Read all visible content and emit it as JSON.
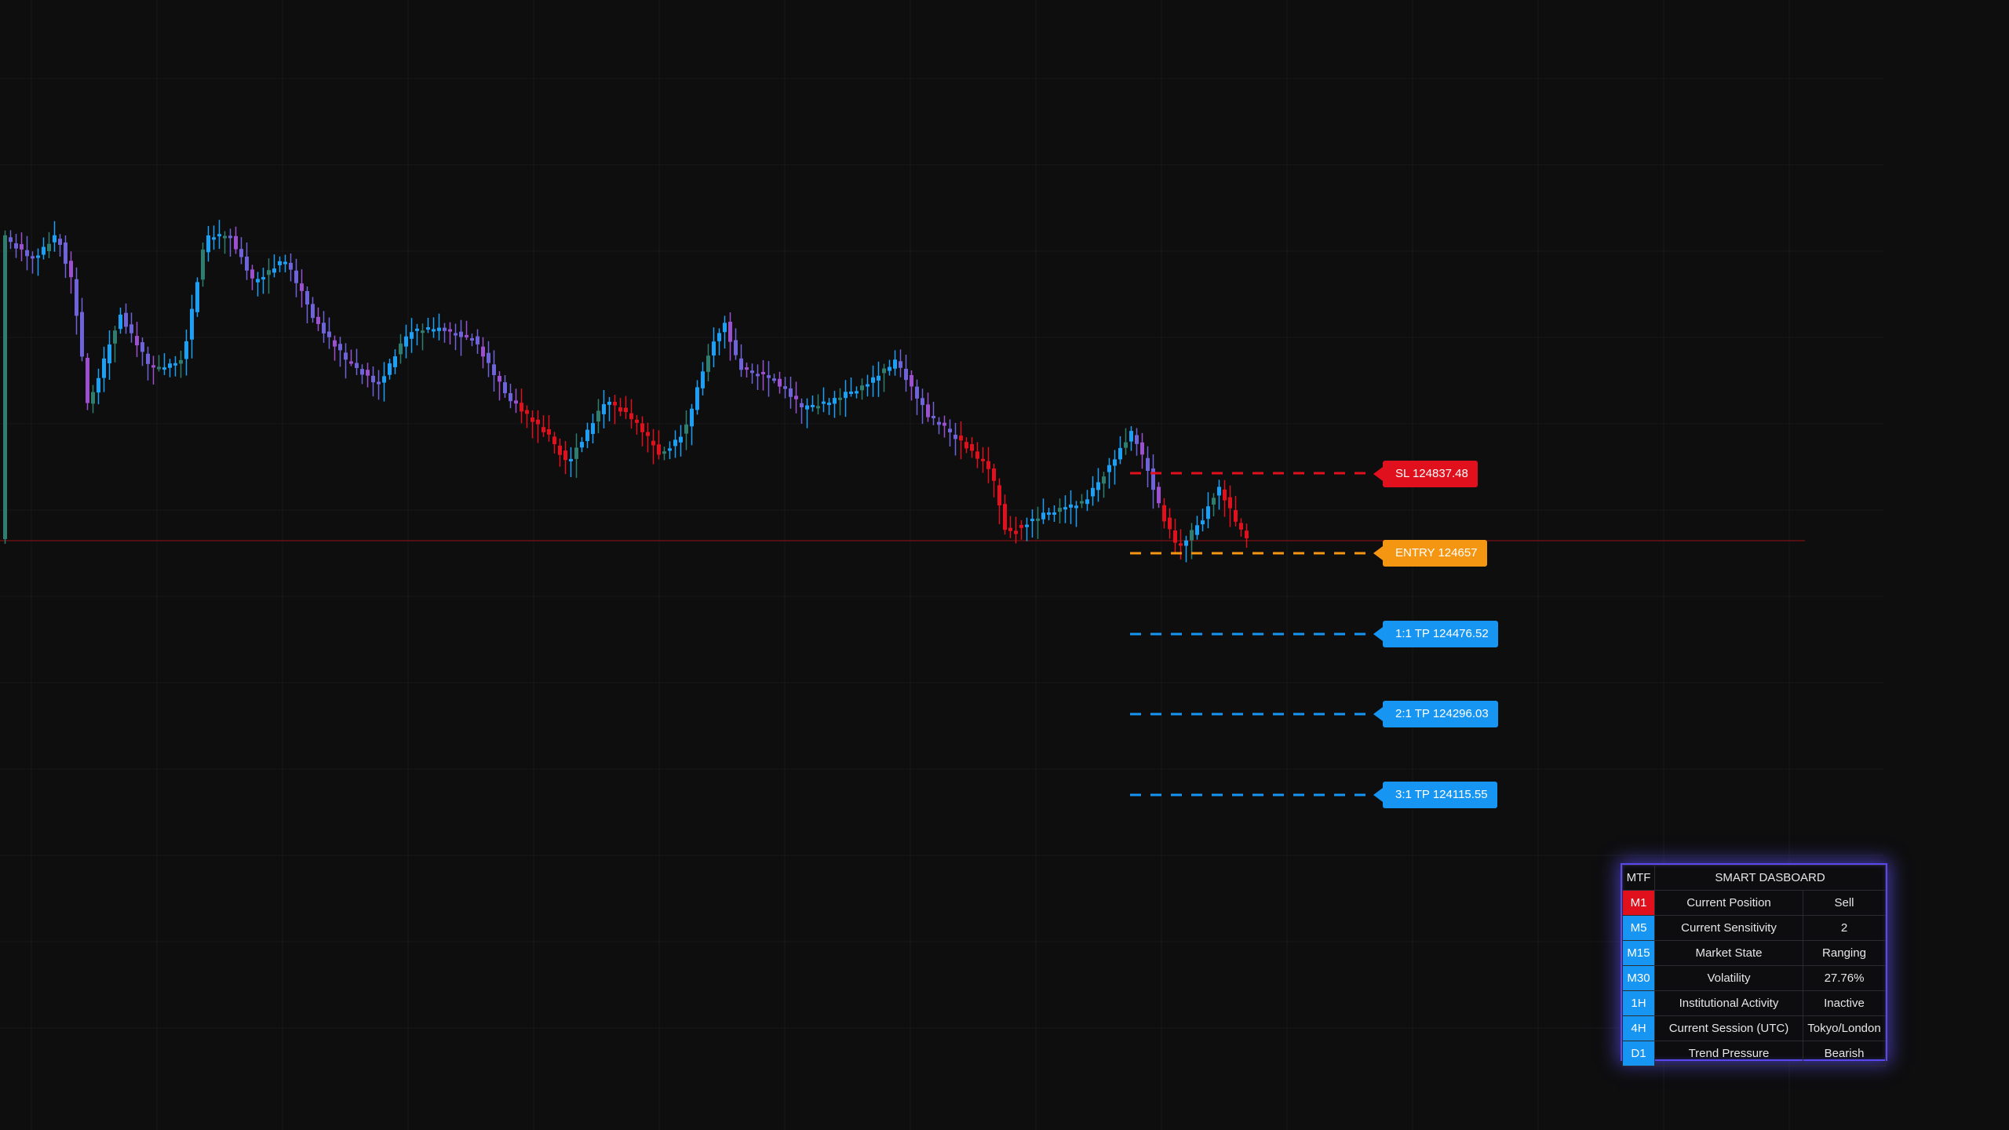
{
  "chart_data": {
    "type": "candlestick",
    "price_lines": {
      "sl": 124837.48,
      "entry": 124657,
      "tp1": 124476.52,
      "tp2": 124296.03,
      "tp3": 124115.55
    }
  },
  "levels": {
    "sl": "SL 124837.48",
    "entry": "ENTRY 124657",
    "tp1": "1:1 TP 124476.52",
    "tp2": "2:1 TP 124296.03",
    "tp3": "3:1 TP 124115.55"
  },
  "colors": {
    "sl": "#e0101d",
    "entry": "#f59612",
    "tp": "#1696f2",
    "dashboard_border": "#5a47f0"
  },
  "dashboard": {
    "header_tf": "MTF",
    "title": "SMART DASBOARD",
    "rows": [
      {
        "tf": "M1",
        "label": "Current Position",
        "value": "Sell"
      },
      {
        "tf": "M5",
        "label": "Current Sensitivity",
        "value": "2"
      },
      {
        "tf": "M15",
        "label": "Market State",
        "value": "Ranging"
      },
      {
        "tf": "M30",
        "label": "Volatility",
        "value": "27.76%"
      },
      {
        "tf": "1H",
        "label": "Institutional Activity",
        "value": "Inactive"
      },
      {
        "tf": "4H",
        "label": "Current Session (UTC)",
        "value": "Tokyo/London"
      },
      {
        "tf": "D1",
        "label": "Trend Pressure",
        "value": "Bearish"
      }
    ]
  }
}
